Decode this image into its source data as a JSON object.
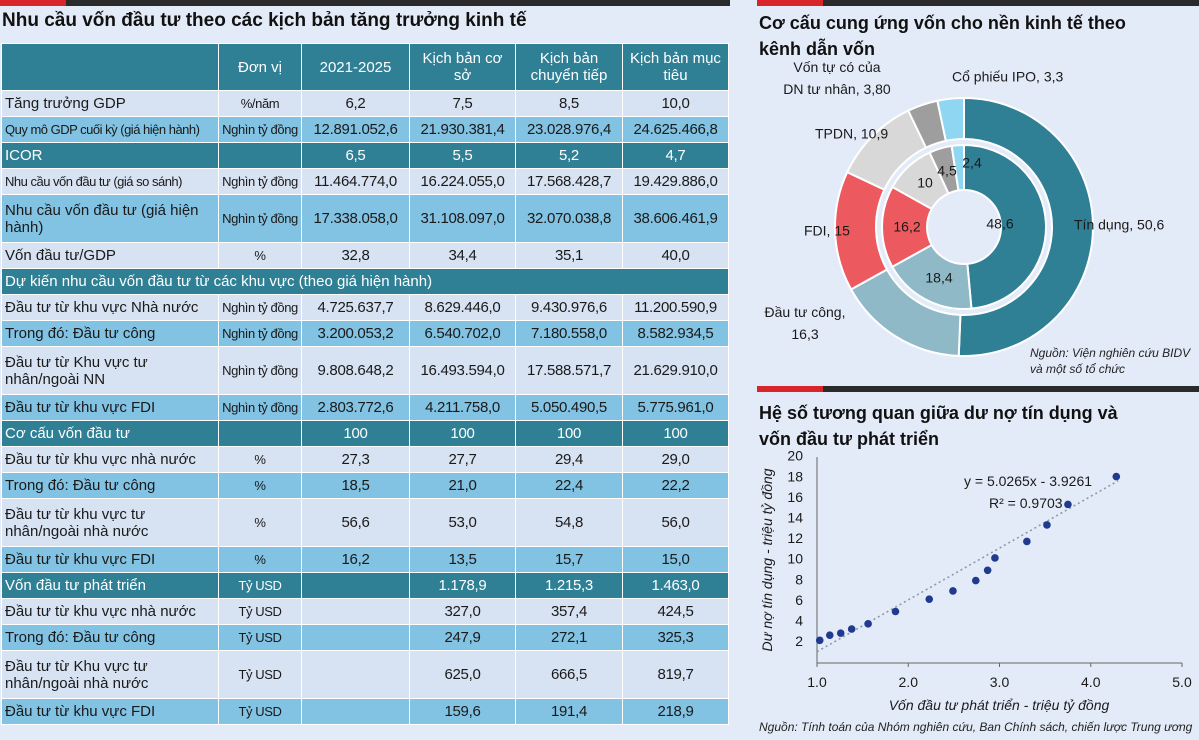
{
  "table": {
    "title": "Nhu cầu vốn đầu tư theo các kịch bản tăng trưởng kinh tế",
    "headers": [
      "",
      "Đơn vị",
      "2021-2025",
      "Kịch bản cơ sở",
      "Kịch bản chuyển tiếp",
      "Kịch bản mục tiêu"
    ],
    "rows": [
      {
        "style": "light",
        "cells": [
          "Tăng trưởng GDP",
          "%/năm",
          "6,2",
          "7,5",
          "8,5",
          "10,0"
        ]
      },
      {
        "style": "mid",
        "small": true,
        "cells": [
          "Quy mô GDP cuối kỳ (giá hiện hành)",
          "Nghìn tỷ đồng",
          "12.891.052,6",
          "21.930.381,4",
          "23.028.976,4",
          "24.625.466,8"
        ]
      },
      {
        "style": "dark",
        "cells": [
          "ICOR",
          "",
          "6,5",
          "5,5",
          "5,2",
          "4,7"
        ]
      },
      {
        "style": "light",
        "small": true,
        "cells": [
          "Nhu cầu vốn đầu tư (giá so sánh)",
          "Nghìn tỷ đồng",
          "11.464.774,0",
          "16.224.055,0",
          "17.568.428,7",
          "19.429.886,0"
        ]
      },
      {
        "style": "mid",
        "cells": [
          "Nhu cầu vốn đầu tư (giá hiện hành)",
          "Nghìn tỷ đồng",
          "17.338.058,0",
          "31.108.097,0",
          "32.070.038,8",
          "38.606.461,9"
        ]
      },
      {
        "style": "light",
        "cells": [
          "Vốn đầu tư/GDP",
          "%",
          "32,8",
          "34,4",
          "35,1",
          "40,0"
        ]
      },
      {
        "style": "dark",
        "span": true,
        "cells": [
          "Dự kiến nhu cầu vốn đầu tư từ các khu vực (theo giá hiện hành)"
        ]
      },
      {
        "style": "light",
        "cells": [
          "Đầu tư từ khu vực Nhà nước",
          "Nghìn tỷ đồng",
          "4.725.637,7",
          "8.629.446,0",
          "9.430.976,6",
          "11.200.590,9"
        ]
      },
      {
        "style": "mid",
        "cells": [
          "Trong đó: Đầu tư công",
          "Nghìn tỷ đồng",
          "3.200.053,2",
          "6.540.702,0",
          "7.180.558,0",
          "8.582.934,5"
        ]
      },
      {
        "style": "light",
        "cells": [
          "Đầu tư từ Khu vực tư nhân/ngoài NN",
          "Nghìn tỷ đồng",
          "9.808.648,2",
          "16.493.594,0",
          "17.588.571,7",
          "21.629.910,0"
        ]
      },
      {
        "style": "mid",
        "cells": [
          "Đầu tư từ khu vực FDI",
          "Nghìn tỷ đồng",
          "2.803.772,6",
          "4.211.758,0",
          "5.050.490,5",
          "5.775.961,0"
        ]
      },
      {
        "style": "dark",
        "cells": [
          "Cơ cấu vốn đầu tư",
          "",
          "100",
          "100",
          "100",
          "100"
        ]
      },
      {
        "style": "light",
        "cells": [
          "Đầu tư từ khu vực nhà nước",
          "%",
          "27,3",
          "27,7",
          "29,4",
          "29,0"
        ]
      },
      {
        "style": "mid",
        "cells": [
          "Trong đó: Đầu tư công",
          "%",
          "18,5",
          "21,0",
          "22,4",
          "22,2"
        ]
      },
      {
        "style": "light",
        "cells": [
          "Đầu tư từ khu vực tư nhân/ngoài nhà nước",
          "%",
          "56,6",
          "53,0",
          "54,8",
          "56,0"
        ]
      },
      {
        "style": "mid",
        "cells": [
          "Đầu tư từ khu vực FDI",
          "%",
          "16,2",
          "13,5",
          "15,7",
          "15,0"
        ]
      },
      {
        "style": "dark",
        "cells": [
          "Vốn đầu tư phát triển",
          "Tỷ USD",
          "",
          "1.178,9",
          "1.215,3",
          "1.463,0"
        ]
      },
      {
        "style": "light",
        "cells": [
          "Đầu tư từ khu vực nhà nước",
          "Tỷ USD",
          "",
          "327,0",
          "357,4",
          "424,5"
        ]
      },
      {
        "style": "mid",
        "cells": [
          "Trong đó: Đầu tư công",
          "Tỷ USD",
          "",
          "247,9",
          "272,1",
          "325,3"
        ]
      },
      {
        "style": "light",
        "cells": [
          "Đầu tư từ Khu vực tư nhân/ngoài nhà nước",
          "Tỷ USD",
          "",
          "625,0",
          "666,5",
          "819,7"
        ]
      },
      {
        "style": "mid",
        "cells": [
          "Đầu tư từ khu vực FDI",
          "Tỷ USD",
          "",
          "159,6",
          "191,4",
          "218,9"
        ]
      }
    ]
  },
  "chart_data": [
    {
      "type": "pie",
      "variant": "double-donut",
      "title": "Cơ cấu cung ứng vốn cho nền kinh tế theo kênh dẫn vốn",
      "source": "Nguồn: Viện nghiên cứu BIDV và một số tổ chức",
      "outer": [
        {
          "name": "Tín dụng",
          "value": 50.6,
          "label": "Tín dụng, 50,6",
          "color": "#2f7f95"
        },
        {
          "name": "Đầu tư công",
          "value": 16.3,
          "label": "Đầu tư công, 16,3",
          "color": "#8fb9c6"
        },
        {
          "name": "FDI",
          "value": 15,
          "label": "FDI, 15",
          "color": "#ec5a5f"
        },
        {
          "name": "TPDN",
          "value": 10.9,
          "label": "TPDN, 10,9",
          "color": "#d8d8d8"
        },
        {
          "name": "Vốn tự có của DN tư nhân",
          "value": 3.8,
          "label": "Vốn tự có của DN tư nhân, 3,80",
          "color": "#9e9e9e"
        },
        {
          "name": "Cổ phiếu IPO",
          "value": 3.3,
          "label": "Cổ phiếu IPO, 3,3",
          "color": "#8fd6f2"
        }
      ],
      "inner": [
        {
          "value": 48.6,
          "label": "48,6",
          "color": "#2f7f95"
        },
        {
          "value": 18.4,
          "label": "18,4",
          "color": "#8fb9c6"
        },
        {
          "value": 16.2,
          "label": "16,2",
          "color": "#ec5a5f"
        },
        {
          "value": 10,
          "label": "10",
          "color": "#d8d8d8"
        },
        {
          "value": 4.5,
          "label": "4,5",
          "color": "#9e9e9e"
        },
        {
          "value": 2.4,
          "label": "2,4",
          "color": "#8fd6f2"
        }
      ]
    },
    {
      "type": "scatter",
      "title": "Hệ số tương quan giữa dư nợ tín dụng và vốn đầu tư phát triển",
      "xlabel": "Vốn đầu tư phát triển - triệu tỷ đồng",
      "ylabel": "Dư nợ tín dụng - triệu tỷ đồng",
      "xlim": [
        1.0,
        5.0
      ],
      "ylim": [
        0,
        20
      ],
      "xticks": [
        1.0,
        2.0,
        3.0,
        4.0,
        5.0
      ],
      "xtick_labels": [
        "1.0",
        "2.0",
        "3.0",
        "4.0",
        "5.0"
      ],
      "yticks": [
        2,
        4,
        6,
        8,
        10,
        12,
        14,
        16,
        18,
        20
      ],
      "points": [
        [
          1.03,
          2.2
        ],
        [
          1.14,
          2.7
        ],
        [
          1.26,
          2.9
        ],
        [
          1.38,
          3.3
        ],
        [
          1.56,
          3.8
        ],
        [
          1.86,
          5.0
        ],
        [
          2.23,
          6.2
        ],
        [
          2.49,
          7.0
        ],
        [
          2.74,
          8.0
        ],
        [
          2.87,
          9.0
        ],
        [
          2.95,
          10.2
        ],
        [
          3.3,
          11.8
        ],
        [
          3.52,
          13.4
        ],
        [
          3.75,
          15.4
        ],
        [
          4.28,
          18.1
        ]
      ],
      "trendline": {
        "slope": 5.0265,
        "intercept": -3.9261,
        "x_range": [
          1.0,
          4.3
        ]
      },
      "equation": "y = 5.0265x - 3.9261",
      "r2": "R² = 0.9703",
      "source": "Nguồn: Tính toán của Nhóm nghiên cứu, Ban Chính sách, chiến lược Trung ương",
      "point_color": "#1f3a8f",
      "trend_color": "#8a9aa8"
    }
  ]
}
